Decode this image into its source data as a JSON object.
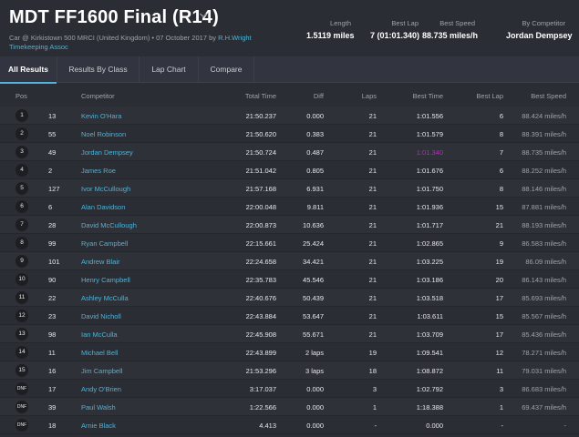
{
  "header": {
    "title": "MDT FF1600 Final (R14)",
    "subtitle_line1": "Car @ Kirkistown 500 MRCI (United Kingdom) • 07 October 2017 by",
    "subtitle_link1": "R.H.Wright",
    "subtitle_link2": "Timekeeping Assoc",
    "length_label": "Length",
    "length_value": "1.5119 miles",
    "best_lap_label": "Best Lap",
    "best_lap_value": "7 (01:01.340)",
    "best_speed_label": "Best Speed",
    "best_speed_value": "88.735 miles/h",
    "by_competitor_label": "By Competitor",
    "by_competitor_value": "Jordan Dempsey"
  },
  "tabs": [
    {
      "label": "All Results"
    },
    {
      "label": "Results By Class"
    },
    {
      "label": "Lap Chart"
    },
    {
      "label": "Compare"
    }
  ],
  "columns": {
    "pos": "Pos",
    "competitor": "Competitor",
    "total_time": "Total Time",
    "diff": "Diff",
    "laps": "Laps",
    "best_time": "Best Time",
    "best_lap": "Best Lap",
    "best_speed": "Best Speed"
  },
  "rows": [
    {
      "pos": "1",
      "no": "13",
      "name": "Kevin O'Hara",
      "total": "21:50.237",
      "diff": "0.000",
      "laps": "21",
      "best_time": "1:01.556",
      "best_lap": "6",
      "speed": "88.424 miles/h"
    },
    {
      "pos": "2",
      "no": "55",
      "name": "Noel Robinson",
      "total": "21:50.620",
      "diff": "0.383",
      "laps": "21",
      "best_time": "1:01.579",
      "best_lap": "8",
      "speed": "88.391 miles/h"
    },
    {
      "pos": "3",
      "no": "49",
      "name": "Jordan Dempsey",
      "total": "21:50.724",
      "diff": "0.487",
      "laps": "21",
      "best_time": "1:01.340",
      "best_lap": "7",
      "speed": "88.735 miles/h"
    },
    {
      "pos": "4",
      "no": "2",
      "name": "James Roe",
      "total": "21:51.042",
      "diff": "0.805",
      "laps": "21",
      "best_time": "1:01.676",
      "best_lap": "6",
      "speed": "88.252 miles/h"
    },
    {
      "pos": "5",
      "no": "127",
      "name": "Ivor McCullough",
      "total": "21:57.168",
      "diff": "6.931",
      "laps": "21",
      "best_time": "1:01.750",
      "best_lap": "8",
      "speed": "88.146 miles/h"
    },
    {
      "pos": "6",
      "no": "6",
      "name": "Alan Davidson",
      "total": "22:00.048",
      "diff": "9.811",
      "laps": "21",
      "best_time": "1:01.936",
      "best_lap": "15",
      "speed": "87.881 miles/h"
    },
    {
      "pos": "7",
      "no": "28",
      "name": "David McCullough",
      "total": "22:00.873",
      "diff": "10.636",
      "laps": "21",
      "best_time": "1:01.717",
      "best_lap": "21",
      "speed": "88.193 miles/h"
    },
    {
      "pos": "8",
      "no": "99",
      "name": "Ryan Campbell",
      "total": "22:15.661",
      "diff": "25.424",
      "laps": "21",
      "best_time": "1:02.865",
      "best_lap": "9",
      "speed": "86.583 miles/h"
    },
    {
      "pos": "9",
      "no": "101",
      "name": "Andrew Blair",
      "total": "22:24.658",
      "diff": "34.421",
      "laps": "21",
      "best_time": "1:03.225",
      "best_lap": "19",
      "speed": "86.09 miles/h"
    },
    {
      "pos": "10",
      "no": "90",
      "name": "Henry Campbell",
      "total": "22:35.783",
      "diff": "45.546",
      "laps": "21",
      "best_time": "1:03.186",
      "best_lap": "20",
      "speed": "86.143 miles/h"
    },
    {
      "pos": "11",
      "no": "22",
      "name": "Ashley McCulla",
      "total": "22:40.676",
      "diff": "50.439",
      "laps": "21",
      "best_time": "1:03.518",
      "best_lap": "17",
      "speed": "85.693 miles/h"
    },
    {
      "pos": "12",
      "no": "23",
      "name": "David Nicholl",
      "total": "22:43.884",
      "diff": "53.647",
      "laps": "21",
      "best_time": "1:03.611",
      "best_lap": "15",
      "speed": "85.567 miles/h"
    },
    {
      "pos": "13",
      "no": "98",
      "name": "Ian McCulla",
      "total": "22:45.908",
      "diff": "55.671",
      "laps": "21",
      "best_time": "1:03.709",
      "best_lap": "17",
      "speed": "85.436 miles/h"
    },
    {
      "pos": "14",
      "no": "11",
      "name": "Michael Bell",
      "total": "22:43.899",
      "diff": "2 laps",
      "laps": "19",
      "best_time": "1:09.541",
      "best_lap": "12",
      "speed": "78.271 miles/h"
    },
    {
      "pos": "15",
      "no": "16",
      "name": "Jim Campbell",
      "total": "21:53.296",
      "diff": "3 laps",
      "laps": "18",
      "best_time": "1:08.872",
      "best_lap": "11",
      "speed": "79.031 miles/h"
    },
    {
      "pos": "DNF",
      "no": "17",
      "name": "Andy O'Brien",
      "total": "3:17.037",
      "diff": "0.000",
      "laps": "3",
      "best_time": "1:02.792",
      "best_lap": "3",
      "speed": "86.683 miles/h"
    },
    {
      "pos": "DNF",
      "no": "39",
      "name": "Paul Walsh",
      "total": "1:22.566",
      "diff": "0.000",
      "laps": "1",
      "best_time": "1:18.388",
      "best_lap": "1",
      "speed": "69.437 miles/h"
    },
    {
      "pos": "DNF",
      "no": "18",
      "name": "Arnie Black",
      "total": "4.413",
      "diff": "0.000",
      "laps": "-",
      "best_time": "0.000",
      "best_lap": "-",
      "speed": "-"
    }
  ],
  "colors": {
    "background": "#2a2d33",
    "accent_link": "#4fb3d9",
    "fastest_lap": "#b02fb3"
  },
  "icons": {
    "title_dropdown": "chevron-down-icon"
  },
  "fastest_row_index": 2
}
